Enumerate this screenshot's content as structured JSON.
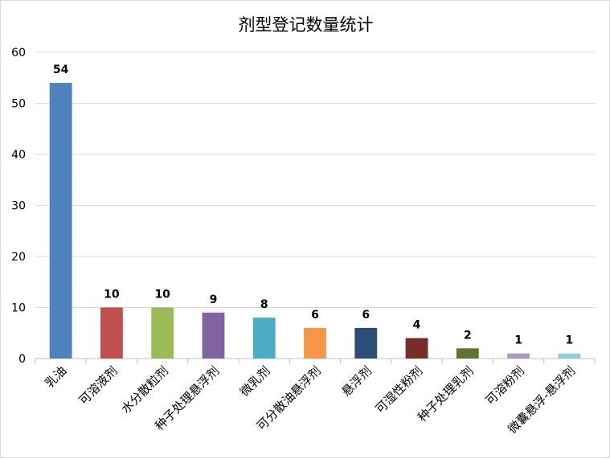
{
  "chart_data": {
    "type": "bar",
    "title": "剂型登记数量统计",
    "categories": [
      "乳油",
      "可溶液剂",
      "水分散粒剂",
      "种子处理悬浮剂",
      "微乳剂",
      "可分散油悬浮剂",
      "悬浮剂",
      "可湿性粉剂",
      "种子处理乳剂",
      "可溶粉剂",
      "微囊悬浮-悬浮剂"
    ],
    "values": [
      54,
      10,
      10,
      9,
      8,
      6,
      6,
      4,
      2,
      1,
      1
    ],
    "colors": [
      "#4f81bd",
      "#c0504d",
      "#9bbb59",
      "#8064a2",
      "#4bacc6",
      "#f79646",
      "#2c4d75",
      "#772c2a",
      "#5f7530",
      "#a99bbd",
      "#92cddc"
    ],
    "ylim": [
      0,
      60
    ],
    "yticks": [
      0,
      10,
      20,
      30,
      40,
      50,
      60
    ],
    "xlabel": "",
    "ylabel": "",
    "grid": true,
    "data_labels": true
  }
}
